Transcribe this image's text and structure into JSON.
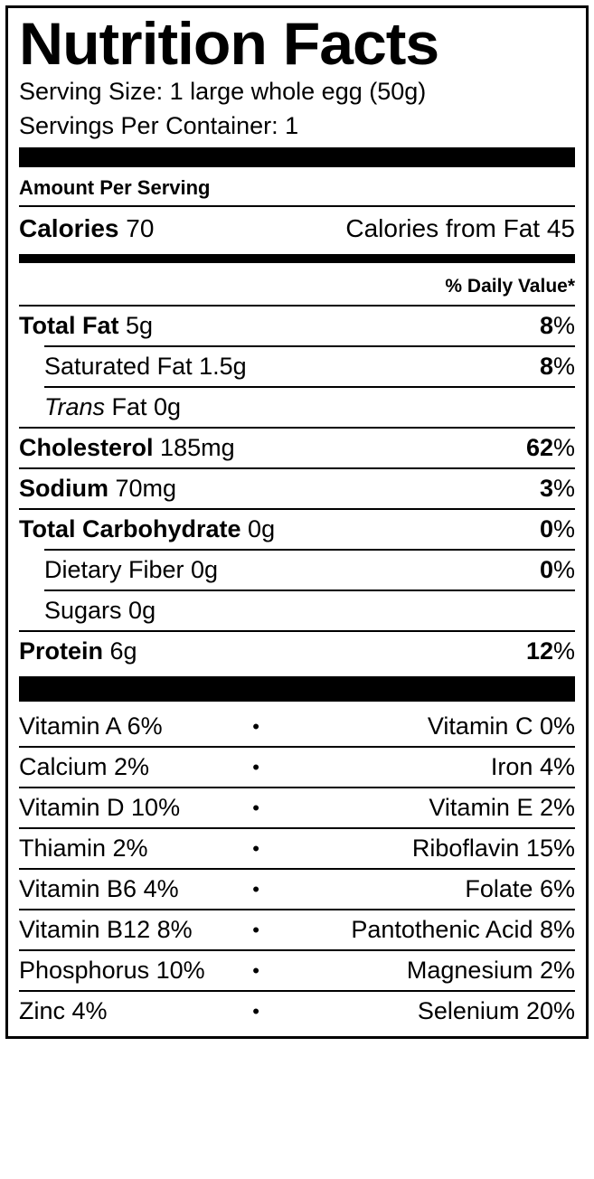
{
  "title": "Nutrition Facts",
  "serving_size_label": "Serving Size: 1 large whole egg (50g)",
  "servings_per_container_label": "Servings Per Container: 1",
  "amount_per_serving_label": "Amount Per Serving",
  "calories": {
    "label": "Calories",
    "value": "70",
    "from_fat_label": "Calories from Fat 45"
  },
  "dv_header": "% Daily Value*",
  "nutrients": {
    "total_fat": {
      "label": "Total Fat",
      "value": "5g",
      "dv": "8"
    },
    "saturated_fat": {
      "label": "Saturated Fat 1.5g",
      "dv": "8"
    },
    "trans_fat": {
      "prefix": "Trans",
      "suffix": " Fat 0g"
    },
    "cholesterol": {
      "label": "Cholesterol",
      "value": "185mg",
      "dv": "62"
    },
    "sodium": {
      "label": "Sodium",
      "value": "70mg",
      "dv": "3"
    },
    "total_carb": {
      "label": "Total Carbohydrate",
      "value": "0g",
      "dv": "0"
    },
    "fiber": {
      "label": "Dietary Fiber 0g",
      "dv": "0"
    },
    "sugars": {
      "label": "Sugars 0g"
    },
    "protein": {
      "label": "Protein",
      "value": "6g",
      "dv": "12"
    }
  },
  "vitamins": [
    {
      "left": "Vitamin A 6%",
      "right": "Vitamin C 0%",
      "tight": false
    },
    {
      "left": "Calcium 2%",
      "right": "Iron 4%",
      "tight": false
    },
    {
      "left": "Vitamin D 10%",
      "right": "Vitamin E 2%",
      "tight": false
    },
    {
      "left": "Thiamin 2%",
      "right": "Riboflavin 15%",
      "tight": false
    },
    {
      "left": "Vitamin B6 4%",
      "right": "Folate 6%",
      "tight": false
    },
    {
      "left": "Vitamin B12 8%",
      "right": "Pantothenic Acid 8%",
      "tight": true
    },
    {
      "left": "Phosphorus 10%",
      "right": "Magnesium 2%",
      "tight": false
    },
    {
      "left": "Zinc 4%",
      "right": "Selenium 20%",
      "tight": false
    }
  ],
  "colors": {
    "border": "#000000",
    "bg": "#ffffff",
    "text": "#000000"
  },
  "typography": {
    "title_fontsize": 66,
    "body_fontsize": 27,
    "aps_fontsize": 22,
    "dv_header_fontsize": 21
  }
}
